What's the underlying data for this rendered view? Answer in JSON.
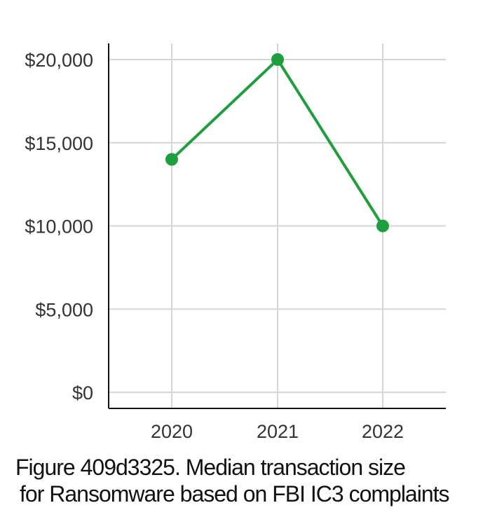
{
  "chart_data": {
    "type": "line",
    "categories": [
      "2020",
      "2021",
      "2022"
    ],
    "series": [
      {
        "color": "#1e9e3c",
        "values": [
          14000,
          20000,
          10000
        ]
      }
    ],
    "ylim": [
      0,
      20000
    ],
    "yticks": [
      0,
      5000,
      10000,
      15000,
      20000
    ],
    "ytick_labels": [
      "$0",
      "$5,000",
      "$10,000",
      "$15,000",
      "$20,000"
    ],
    "grid": true,
    "title": "",
    "xlabel": "",
    "ylabel": ""
  },
  "caption": {
    "line1": "Figure 409d3325. Median transaction size",
    "line2": "for Ransomware based on FBI IC3 complaints"
  }
}
